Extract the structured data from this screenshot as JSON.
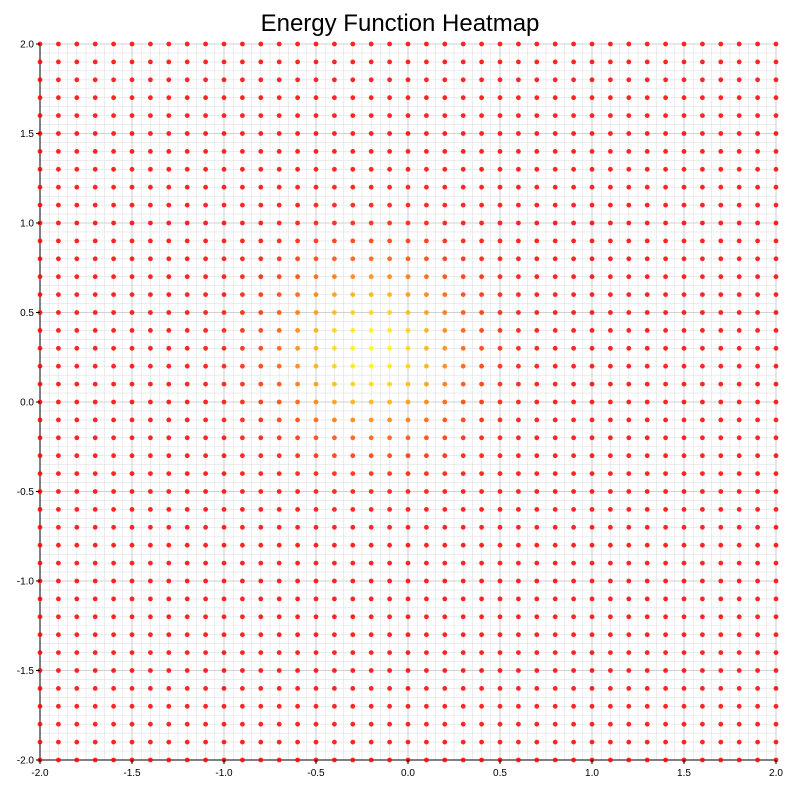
{
  "chart_data": {
    "type": "heatmap",
    "title": "Energy Function Heatmap",
    "xlabel": "",
    "ylabel": "",
    "xlim": [
      -2.0,
      2.0
    ],
    "ylim": [
      -2.0,
      2.0
    ],
    "grid": true,
    "x_ticks": [
      -2.0,
      -1.5,
      -1.0,
      -0.5,
      0.0,
      0.5,
      1.0,
      1.5,
      2.0
    ],
    "y_ticks": [
      -2.0,
      -1.5,
      -1.0,
      -0.5,
      0.0,
      0.5,
      1.0,
      1.5,
      2.0
    ],
    "x_tick_labels": [
      "-2.0",
      "-1.5",
      "-1.0",
      "-0.5",
      "0.0",
      "0.5",
      "1.0",
      "1.5",
      "2.0"
    ],
    "y_tick_labels": [
      "-2.0",
      "-1.5",
      "-1.0",
      "-0.5",
      "0.0",
      "0.5",
      "1.0",
      "1.5",
      "2.0"
    ],
    "sample_grid": {
      "x_start": -2.0,
      "x_end": 2.0,
      "y_start": -2.0,
      "y_end": 2.0,
      "count": 41
    },
    "energy_minimum": {
      "x": -0.2,
      "y": 0.3
    },
    "colors": {
      "low": "#ffff00",
      "mid": "#ff8c00",
      "high": "#ff0000",
      "grid": "#e0e0e0",
      "major_grid": "#c8c8c8",
      "axis": "#000000"
    }
  }
}
